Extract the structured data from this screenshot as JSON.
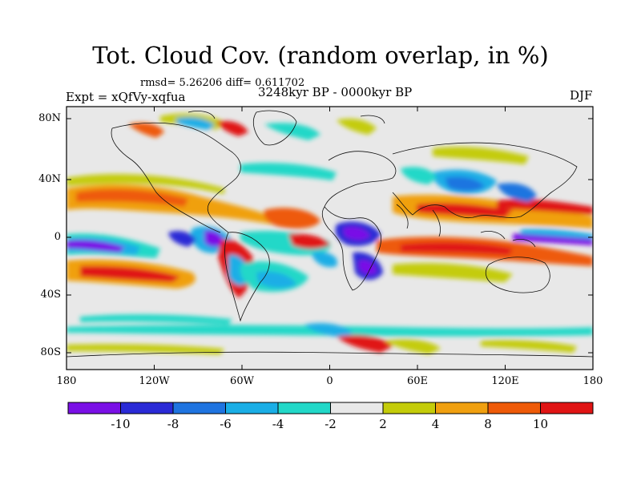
{
  "title": "Tot. Cloud Cov. (random overlap, in %)",
  "stats": "rmsd= 5.26206 diff= 0.611702",
  "experiment": "Expt = xQfVy-xqfua",
  "period": "3248kyr BP - 0000kyr BP",
  "season": "DJF",
  "lat_ticks": [
    "80N",
    "40N",
    "0",
    "40S",
    "80S"
  ],
  "lon_ticks": [
    "180",
    "120W",
    "60W",
    "0",
    "60E",
    "120E",
    "180"
  ],
  "colorbar": {
    "labels": [
      "-10",
      "-8",
      "-6",
      "-4",
      "-2",
      "2",
      "4",
      "8",
      "10"
    ],
    "colors": [
      "#7a10e6",
      "#2a2ad6",
      "#1f74e0",
      "#1aaee6",
      "#22d8c8",
      "#e8e8e8",
      "#c4cc0a",
      "#f0a010",
      "#ee5a08",
      "#e01414"
    ]
  }
}
